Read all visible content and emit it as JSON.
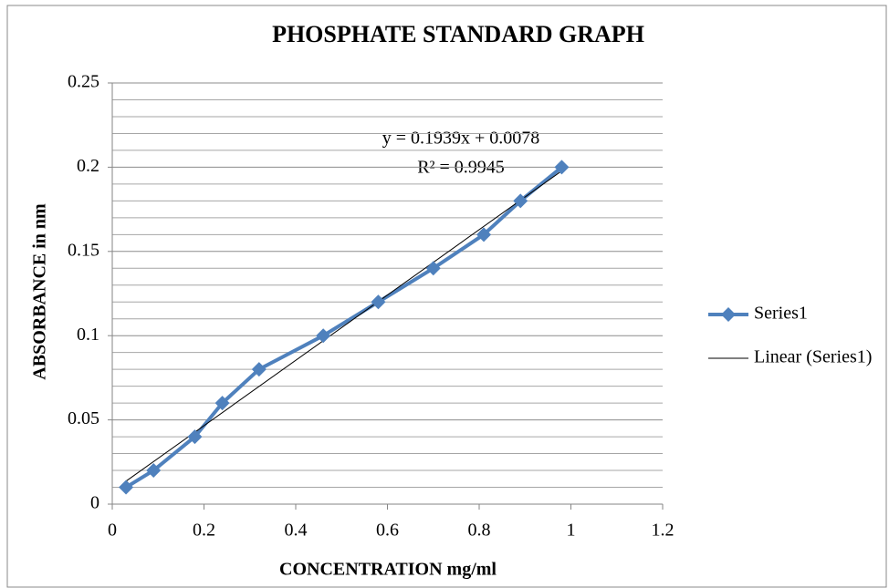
{
  "chart_data": {
    "type": "scatter",
    "title": "PHOSPHATE  STANDARD GRAPH",
    "x_label": "CONCENTRATION  mg/ml",
    "y_label": "ABSORBANCE in nm",
    "xlim": [
      0,
      1.2
    ],
    "xticks": [
      0,
      0.2,
      0.4,
      0.6,
      0.8,
      1,
      1.2
    ],
    "ylim": [
      0,
      0.25
    ],
    "yticks": [
      0,
      0.05,
      0.1,
      0.15,
      0.2,
      0.25
    ],
    "y_minor_ticks": [
      0.01,
      0.02,
      0.03,
      0.04,
      0.06,
      0.07,
      0.08,
      0.09,
      0.11,
      0.12,
      0.13,
      0.14,
      0.16,
      0.17,
      0.18,
      0.19,
      0.21,
      0.22,
      0.23,
      0.24
    ],
    "grid": true,
    "legend": "right",
    "x": [
      0.03,
      0.09,
      0.18,
      0.24,
      0.32,
      0.46,
      0.58,
      0.7,
      0.81,
      0.89,
      0.98
    ],
    "series": [
      {
        "name": "Series1",
        "color": "#4f81bd",
        "values": [
          0.01,
          0.02,
          0.04,
          0.06,
          0.08,
          0.1,
          0.12,
          0.14,
          0.16,
          0.18,
          0.2
        ]
      }
    ],
    "trendline": {
      "name": "Linear (Series1)",
      "color": "#000000",
      "equation": "y = 0.1939x + 0.0078",
      "r_squared": "R² = 0.9945",
      "slope": 0.1939,
      "intercept": 0.0078
    }
  }
}
